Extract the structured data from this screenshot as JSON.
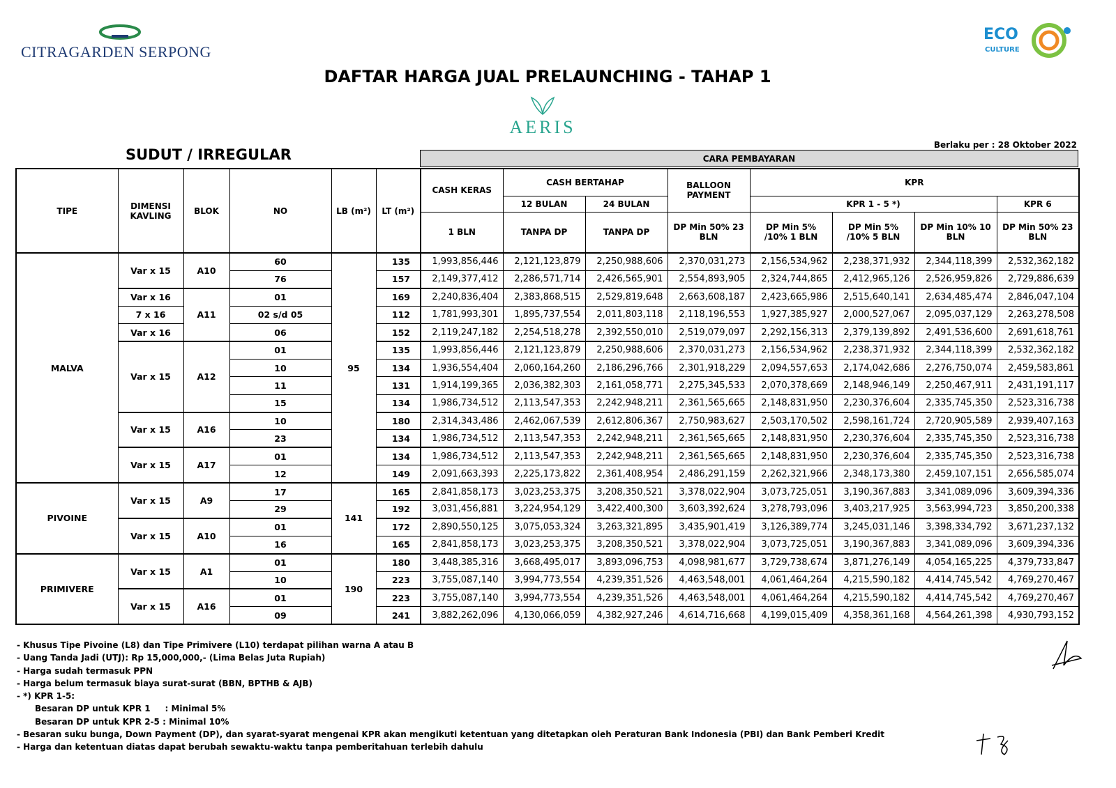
{
  "header": {
    "brand": "CitraGarden Serpong",
    "brand_display": "CITRAGARDEN SERPONG",
    "eco_logo": "ECO CULTURE",
    "title": "DAFTAR HARGA JUAL PRELAUNCHING - TAHAP 1",
    "project": "AERIS",
    "effective_date": "Berlaku per : 28 Oktober 2022",
    "subtitle": "SUDUT / IRREGULAR",
    "payment_header": "CARA PEMBAYARAN"
  },
  "columns": {
    "tipe": "TIPE",
    "dimensi": "DIMENSI KAVLING",
    "blok": "BLOK",
    "no": "NO",
    "lb": "LB (m²)",
    "lt": "LT (m²)",
    "cash_keras": "CASH KERAS",
    "cash_bertahap": "CASH BERTAHAP",
    "bulan12": "12 BULAN",
    "bulan24": "24 BULAN",
    "balloon": "BALLOON PAYMENT",
    "kpr": "KPR",
    "kpr15": "KPR 1 - 5 *)",
    "kpr6": "KPR 6",
    "sub": [
      "1 BLN",
      "TANPA DP",
      "TANPA DP",
      "DP Min 50% 23 BLN",
      "DP Min 5% /10% 1 BLN",
      "DP Min 5% /10% 5 BLN",
      "DP Min 10% 10 BLN",
      "DP Min 50% 23 BLN"
    ]
  },
  "types": [
    {
      "tipe": "MALVA",
      "lb": "95",
      "bloks": [
        {
          "blok": "A10",
          "rows": [
            {
              "dim": "Var x 15",
              "no": "60",
              "lt": "135",
              "p": [
                "1,993,856,446",
                "2,121,123,879",
                "2,250,988,606",
                "2,370,031,273",
                "2,156,534,962",
                "2,238,371,932",
                "2,344,118,399",
                "2,532,362,182"
              ]
            },
            {
              "dim": "Var x 15",
              "no": "76",
              "lt": "157",
              "p": [
                "2,149,377,412",
                "2,286,571,714",
                "2,426,565,901",
                "2,554,893,905",
                "2,324,744,865",
                "2,412,965,126",
                "2,526,959,826",
                "2,729,886,639"
              ]
            }
          ]
        },
        {
          "blok": "A11",
          "rows": [
            {
              "dim": "Var x 16",
              "no": "01",
              "lt": "169",
              "p": [
                "2,240,836,404",
                "2,383,868,515",
                "2,529,819,648",
                "2,663,608,187",
                "2,423,665,986",
                "2,515,640,141",
                "2,634,485,474",
                "2,846,047,104"
              ]
            },
            {
              "dim": "7 x 16",
              "no": "02 s/d 05",
              "lt": "112",
              "p": [
                "1,781,993,301",
                "1,895,737,554",
                "2,011,803,118",
                "2,118,196,553",
                "1,927,385,927",
                "2,000,527,067",
                "2,095,037,129",
                "2,263,278,508"
              ]
            },
            {
              "dim": "Var x 16",
              "no": "06",
              "lt": "152",
              "p": [
                "2,119,247,182",
                "2,254,518,278",
                "2,392,550,010",
                "2,519,079,097",
                "2,292,156,313",
                "2,379,139,892",
                "2,491,536,600",
                "2,691,618,761"
              ]
            }
          ]
        },
        {
          "blok": "A12",
          "rows": [
            {
              "dim": "Var x 15",
              "no": "01",
              "lt": "135",
              "p": [
                "1,993,856,446",
                "2,121,123,879",
                "2,250,988,606",
                "2,370,031,273",
                "2,156,534,962",
                "2,238,371,932",
                "2,344,118,399",
                "2,532,362,182"
              ]
            },
            {
              "dim": "Var x 15",
              "no": "10",
              "lt": "134",
              "p": [
                "1,936,554,404",
                "2,060,164,260",
                "2,186,296,766",
                "2,301,918,229",
                "2,094,557,653",
                "2,174,042,686",
                "2,276,750,074",
                "2,459,583,861"
              ]
            },
            {
              "dim": "Var x 15",
              "no": "11",
              "lt": "131",
              "p": [
                "1,914,199,365",
                "2,036,382,303",
                "2,161,058,771",
                "2,275,345,533",
                "2,070,378,669",
                "2,148,946,149",
                "2,250,467,911",
                "2,431,191,117"
              ]
            },
            {
              "dim": "Var x 15",
              "no": "15",
              "lt": "134",
              "p": [
                "1,986,734,512",
                "2,113,547,353",
                "2,242,948,211",
                "2,361,565,665",
                "2,148,831,950",
                "2,230,376,604",
                "2,335,745,350",
                "2,523,316,738"
              ]
            }
          ]
        },
        {
          "blok": "A16",
          "rows": [
            {
              "dim": "Var x 15",
              "no": "10",
              "lt": "180",
              "p": [
                "2,314,343,486",
                "2,462,067,539",
                "2,612,806,367",
                "2,750,983,627",
                "2,503,170,502",
                "2,598,161,724",
                "2,720,905,589",
                "2,939,407,163"
              ]
            },
            {
              "dim": "Var x 15",
              "no": "23",
              "lt": "134",
              "p": [
                "1,986,734,512",
                "2,113,547,353",
                "2,242,948,211",
                "2,361,565,665",
                "2,148,831,950",
                "2,230,376,604",
                "2,335,745,350",
                "2,523,316,738"
              ]
            }
          ]
        },
        {
          "blok": "A17",
          "rows": [
            {
              "dim": "Var x 15",
              "no": "01",
              "lt": "134",
              "p": [
                "1,986,734,512",
                "2,113,547,353",
                "2,242,948,211",
                "2,361,565,665",
                "2,148,831,950",
                "2,230,376,604",
                "2,335,745,350",
                "2,523,316,738"
              ]
            },
            {
              "dim": "Var x 15",
              "no": "12",
              "lt": "149",
              "p": [
                "2,091,663,393",
                "2,225,173,822",
                "2,361,408,954",
                "2,486,291,159",
                "2,262,321,966",
                "2,348,173,380",
                "2,459,107,151",
                "2,656,585,074"
              ]
            }
          ]
        }
      ]
    },
    {
      "tipe": "PIVOINE",
      "lb": "141",
      "bloks": [
        {
          "blok": "A9",
          "rows": [
            {
              "dim": "Var x 15",
              "no": "17",
              "lt": "165",
              "p": [
                "2,841,858,173",
                "3,023,253,375",
                "3,208,350,521",
                "3,378,022,904",
                "3,073,725,051",
                "3,190,367,883",
                "3,341,089,096",
                "3,609,394,336"
              ]
            },
            {
              "dim": "Var x 15",
              "no": "29",
              "lt": "192",
              "p": [
                "3,031,456,881",
                "3,224,954,129",
                "3,422,400,300",
                "3,603,392,624",
                "3,278,793,096",
                "3,403,217,925",
                "3,563,994,723",
                "3,850,200,338"
              ]
            }
          ]
        },
        {
          "blok": "A10",
          "rows": [
            {
              "dim": "Var x 15",
              "no": "01",
              "lt": "172",
              "p": [
                "2,890,550,125",
                "3,075,053,324",
                "3,263,321,895",
                "3,435,901,419",
                "3,126,389,774",
                "3,245,031,146",
                "3,398,334,792",
                "3,671,237,132"
              ]
            },
            {
              "dim": "Var x 15",
              "no": "16",
              "lt": "165",
              "p": [
                "2,841,858,173",
                "3,023,253,375",
                "3,208,350,521",
                "3,378,022,904",
                "3,073,725,051",
                "3,190,367,883",
                "3,341,089,096",
                "3,609,394,336"
              ]
            }
          ]
        }
      ]
    },
    {
      "tipe": "PRIMIVERE",
      "lb": "190",
      "bloks": [
        {
          "blok": "A1",
          "rows": [
            {
              "dim": "Var x 15",
              "no": "01",
              "lt": "180",
              "p": [
                "3,448,385,316",
                "3,668,495,017",
                "3,893,096,753",
                "4,098,981,677",
                "3,729,738,674",
                "3,871,276,149",
                "4,054,165,225",
                "4,379,733,847"
              ]
            },
            {
              "dim": "Var x 15",
              "no": "10",
              "lt": "223",
              "p": [
                "3,755,087,140",
                "3,994,773,554",
                "4,239,351,526",
                "4,463,548,001",
                "4,061,464,264",
                "4,215,590,182",
                "4,414,745,542",
                "4,769,270,467"
              ]
            }
          ]
        },
        {
          "blok": "A16",
          "rows": [
            {
              "dim": "Var x 15",
              "no": "01",
              "lt": "223",
              "p": [
                "3,755,087,140",
                "3,994,773,554",
                "4,239,351,526",
                "4,463,548,001",
                "4,061,464,264",
                "4,215,590,182",
                "4,414,745,542",
                "4,769,270,467"
              ]
            },
            {
              "dim": "Var x 15",
              "no": "09",
              "lt": "241",
              "p": [
                "3,882,262,096",
                "4,130,066,059",
                "4,382,927,246",
                "4,614,716,668",
                "4,199,015,409",
                "4,358,361,168",
                "4,564,261,398",
                "4,930,793,152"
              ]
            }
          ]
        }
      ]
    }
  ],
  "notes": [
    {
      "text": "- Khusus Tipe Pivoine (L8) dan Tipe Primivere (L10) terdapat pilihan warna A atau B",
      "indent": false
    },
    {
      "text": "- Uang Tanda Jadi (UTJ): Rp 15,000,000,- (Lima Belas Juta Rupiah)",
      "indent": false
    },
    {
      "text": "- Harga sudah termasuk PPN",
      "indent": false
    },
    {
      "text": "- Harga belum termasuk biaya surat-surat (BBN, BPTHB & AJB)",
      "indent": false
    },
    {
      "text": "- *) KPR 1-5:",
      "indent": false
    },
    {
      "text": "Besaran DP untuk KPR 1     : Minimal 5%",
      "indent": true
    },
    {
      "text": "Besaran DP untuk KPR 2-5 : Minimal 10%",
      "indent": true
    },
    {
      "text": "- Besaran suku bunga, Down Payment (DP), dan syarat-syarat mengenai KPR akan mengikuti ketentuan yang ditetapkan oleh Peraturan Bank Indonesia (PBI) dan Bank Pemberi Kredit",
      "indent": false
    },
    {
      "text": "- Harga dan ketentuan diatas dapat berubah sewaktu-waktu tanpa pemberitahuan terlebih dahulu",
      "indent": false
    }
  ],
  "colors": {
    "brand": "#1f3b73",
    "aeris": "#2aa58f",
    "eco_blue": "#1d8fd0",
    "eco_orange": "#f08a24",
    "eco_green": "#7cc242",
    "header_bg": "#d9d9d9"
  }
}
